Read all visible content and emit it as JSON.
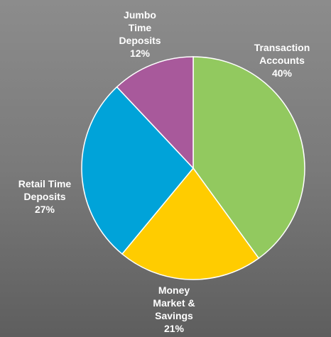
{
  "chart_data": {
    "type": "pie",
    "categories": [
      "Transaction Accounts",
      "Money Market & Savings",
      "Retail Time Deposits",
      "Jumbo Time Deposits"
    ],
    "values": [
      40,
      21,
      27,
      12
    ],
    "value_labels": [
      "40%",
      "21%",
      "27%",
      "12%"
    ],
    "colors": [
      "#92c95f",
      "#ffcc00",
      "#00a3d9",
      "#a8599b"
    ]
  }
}
